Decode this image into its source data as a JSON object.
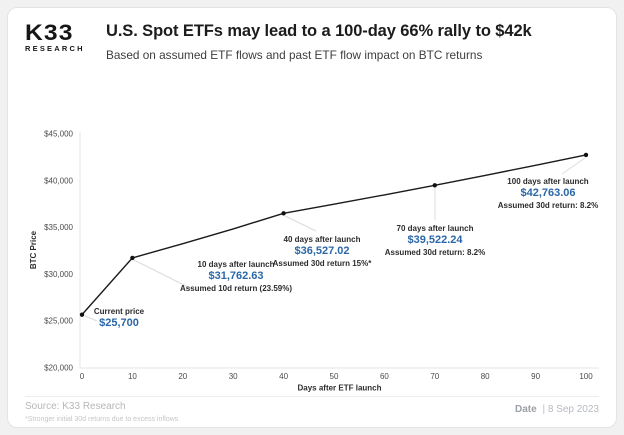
{
  "header": {
    "logo_top": "K33",
    "logo_bottom": "RESEARCH",
    "title": "U.S. Spot ETFs may lead to a 100-day 66% rally to $42k",
    "subtitle": "Based on assumed ETF flows and past ETF flow impact on BTC returns"
  },
  "chart_data": {
    "type": "line",
    "title": "",
    "xlabel": "Days after ETF launch",
    "ylabel": "BTC Price",
    "xlim": [
      0,
      100
    ],
    "ylim": [
      20000,
      45000
    ],
    "x_ticks": [
      0,
      10,
      20,
      30,
      40,
      50,
      60,
      70,
      80,
      90,
      100
    ],
    "y_ticks": [
      {
        "value": 45000,
        "label": "$45,000"
      },
      {
        "value": 40000,
        "label": "$40,000"
      },
      {
        "value": 35000,
        "label": "$35,000"
      },
      {
        "value": 30000,
        "label": "$30,000"
      },
      {
        "value": 25000,
        "label": "$25,000"
      },
      {
        "value": 20000,
        "label": "$20,000"
      }
    ],
    "grid": false,
    "legend": false,
    "line_color": "#1b1b1b",
    "marker_color": "#111111",
    "accent_blue": "#2b67a8",
    "points": [
      {
        "day": 0,
        "value": 25700
      },
      {
        "day": 10,
        "value": 31762.63
      },
      {
        "day": 20,
        "value": 33277,
        "estimated": true
      },
      {
        "day": 30,
        "value": 34864,
        "estimated": true
      },
      {
        "day": 40,
        "value": 36527.02
      },
      {
        "day": 50,
        "value": 37498,
        "estimated": true
      },
      {
        "day": 60,
        "value": 38495,
        "estimated": true
      },
      {
        "day": 70,
        "value": 39522.24
      },
      {
        "day": 80,
        "value": 40573,
        "estimated": true
      },
      {
        "day": 90,
        "value": 41652,
        "estimated": true
      },
      {
        "day": 100,
        "value": 42763.06
      }
    ],
    "marker_days": [
      0,
      10,
      40,
      70,
      100
    ],
    "annotations": [
      {
        "day": 0,
        "value": 25700,
        "label": "Current price",
        "value_text": "$25,700",
        "note": ""
      },
      {
        "day": 10,
        "value": 31762.63,
        "label": "10 days after launch",
        "value_text": "$31,762.63",
        "note": "Assumed 10d return (23.59%)"
      },
      {
        "day": 40,
        "value": 36527.02,
        "label": "40 days after launch",
        "value_text": "$36,527.02",
        "note": "Assumed 30d return 15%*"
      },
      {
        "day": 70,
        "value": 39522.24,
        "label": "70 days after launch",
        "value_text": "$39,522.24",
        "note": "Assumed 30d return: 8.2%"
      },
      {
        "day": 100,
        "value": 42763.06,
        "label": "100 days after launch",
        "value_text": "$42,763.06",
        "note": "Assumed 30d return: 8.2%"
      }
    ]
  },
  "footer": {
    "source": "Source: K33 Research",
    "footnote": "*Stronger initial 30d returns due to excess inflows",
    "date_label": "Date",
    "date_value": "| 8 Sep 2023"
  }
}
